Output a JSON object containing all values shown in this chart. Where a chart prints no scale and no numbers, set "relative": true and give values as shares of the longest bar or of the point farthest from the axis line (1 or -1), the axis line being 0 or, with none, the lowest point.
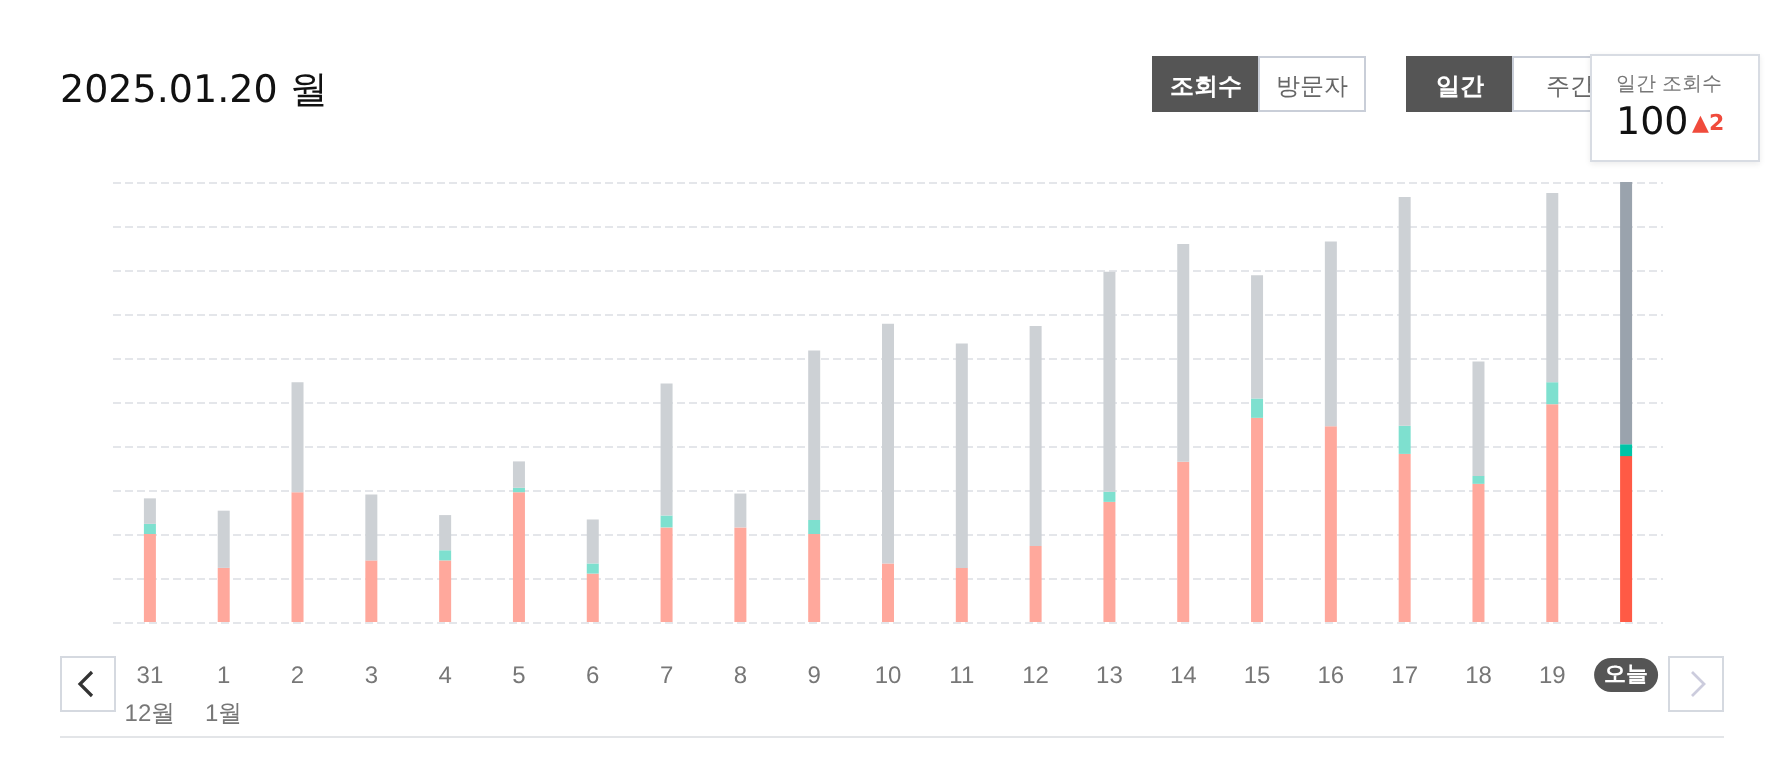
{
  "chart_data": {
    "type": "bar",
    "title": "2025.01.20 월",
    "annotations": [
      "조회수",
      "방문자",
      "일간",
      "주간",
      "일간 조회수",
      "100",
      "▲2"
    ],
    "categories": [
      "31\n12월",
      "1\n1월",
      "2",
      "3",
      "4",
      "5",
      "6",
      "7",
      "8",
      "9",
      "10",
      "11",
      "12",
      "13",
      "14",
      "15",
      "16",
      "17",
      "18",
      "19",
      "오늘"
    ],
    "stacked": true,
    "relative": true,
    "grid": "y",
    "tick_labels": "x",
    "series": [
      {
        "values": [
          0.2,
          0.123,
          0.295,
          0.14,
          0.14,
          0.295,
          0.11,
          0.215,
          0.215,
          0.2,
          0.133,
          0.123,
          0.173,
          0.273,
          0.364,
          0.464,
          0.445,
          0.382,
          0.314,
          0.495,
          0.377
        ],
        "colors": [
          "#ffa89c",
          "#ffa89c",
          "#ffa89c",
          "#ffa89c",
          "#ffa89c",
          "#ffa89c",
          "#ffa89c",
          "#ffa89c",
          "#ffa89c",
          "#ffa89c",
          "#ffa89c",
          "#ffa89c",
          "#ffa89c",
          "#ffa89c",
          "#ffa89c",
          "#ffa89c",
          "#ffa89c",
          "#ffa89c",
          "#ffa89c",
          "#ffa89c",
          "#ff5a45"
        ]
      },
      {
        "values": [
          0.023,
          0,
          0,
          0,
          0.023,
          0.01,
          0.023,
          0.027,
          0,
          0.032,
          0,
          0,
          0,
          0.023,
          0,
          0.044,
          0,
          0.064,
          0.018,
          0.05,
          0.027
        ],
        "colors": [
          "#7ee0cf",
          "#7ee0cf",
          "#7ee0cf",
          "#7ee0cf",
          "#7ee0cf",
          "#7ee0cf",
          "#7ee0cf",
          "#7ee0cf",
          "#7ee0cf",
          "#7ee0cf",
          "#7ee0cf",
          "#7ee0cf",
          "#7ee0cf",
          "#7ee0cf",
          "#7ee0cf",
          "#7ee0cf",
          "#7ee0cf",
          "#7ee0cf",
          "#7ee0cf",
          "#7ee0cf",
          "#00c4a7"
        ]
      },
      {
        "values": [
          0.058,
          0.13,
          0.25,
          0.15,
          0.08,
          0.06,
          0.1,
          0.3,
          0.077,
          0.385,
          0.545,
          0.51,
          0.5,
          0.5,
          0.495,
          0.28,
          0.42,
          0.52,
          0.26,
          0.43,
          0.596
        ],
        "colors": [
          "#cdd1d5",
          "#cdd1d5",
          "#cdd1d5",
          "#cdd1d5",
          "#cdd1d5",
          "#cdd1d5",
          "#cdd1d5",
          "#cdd1d5",
          "#cdd1d5",
          "#cdd1d5",
          "#cdd1d5",
          "#cdd1d5",
          "#cdd1d5",
          "#cdd1d5",
          "#cdd1d5",
          "#cdd1d5",
          "#cdd1d5",
          "#cdd1d5",
          "#cdd1d5",
          "#cdd1d5",
          "#9aa3ad"
        ]
      }
    ]
  }
}
